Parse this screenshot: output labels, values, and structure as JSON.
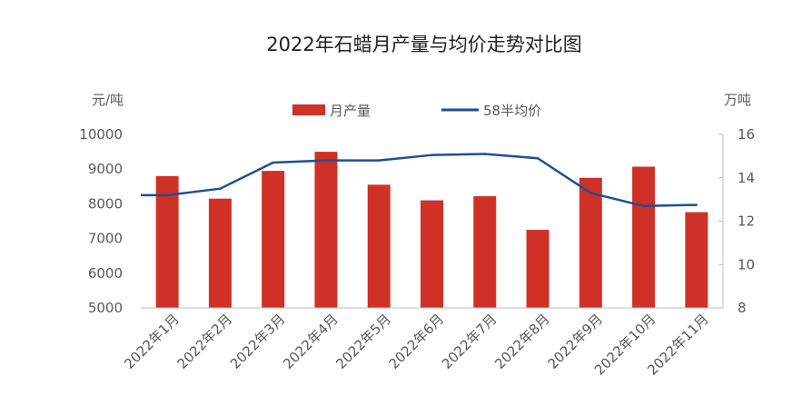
{
  "chart_data": {
    "type": "bar",
    "title": "2022年石蜡月产量与均价走势对比图",
    "categories": [
      "2022年1月",
      "2022年2月",
      "2022年3月",
      "2022年4月",
      "2022年5月",
      "2022年6月",
      "2022年7月",
      "2022年8月",
      "2022年9月",
      "2022年10月",
      "2022年11月"
    ],
    "left_axis": {
      "unit": "元/吨",
      "ylim": [
        5000,
        10000
      ],
      "ticks": [
        "5000",
        "6000",
        "7000",
        "8000",
        "9000",
        "10000"
      ]
    },
    "right_axis": {
      "unit": "万吨",
      "ylim": [
        8,
        16
      ],
      "ticks": [
        "8",
        "10",
        "12",
        "14",
        "16"
      ]
    },
    "series": [
      {
        "name": "月产量",
        "type": "bar",
        "axis": "left",
        "color": "#d03127",
        "values": [
          8800,
          8150,
          8950,
          9500,
          8550,
          8100,
          8220,
          7250,
          8750,
          9070,
          7760
        ]
      },
      {
        "name": "58半均价",
        "type": "line",
        "axis": "right",
        "color": "#1f4e96",
        "values": [
          13.2,
          13.5,
          14.7,
          14.8,
          14.8,
          15.05,
          15.1,
          14.9,
          13.3,
          12.7,
          12.75
        ]
      }
    ],
    "legend_position": "top-center",
    "grid": false
  }
}
